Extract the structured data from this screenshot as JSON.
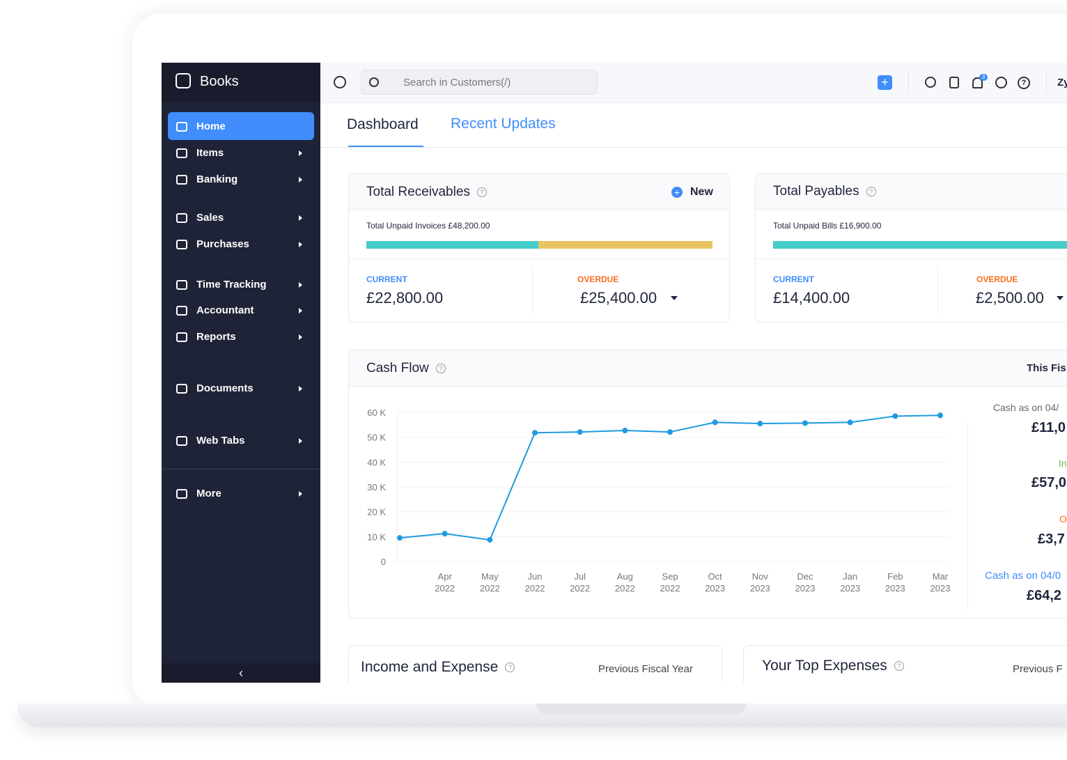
{
  "sidebar": {
    "brand": "Books",
    "nav": [
      "Home",
      "Items",
      "Banking",
      "Sales",
      "Purchases",
      "Time Tracking",
      "Accountant",
      "Reports",
      "Documents",
      "Web Tabs",
      "More"
    ]
  },
  "topbar": {
    "search_placeholder": "Search in Customers(/)",
    "notification_count": "3",
    "user": "Zy"
  },
  "tabs": [
    "Dashboard",
    "Recent Updates"
  ],
  "receivables": {
    "title": "Total Receivables",
    "action": "New",
    "summary": "Total Unpaid Invoices £48,200.00",
    "current_label": "CURRENT",
    "current": "£22,800.00",
    "overdue_label": "OVERDUE",
    "overdue": "£25,400.00"
  },
  "payables": {
    "title": "Total Payables",
    "summary": "Total Unpaid Bills £16,900.00",
    "current_label": "CURRENT",
    "current": "£14,400.00",
    "overdue_label": "OVERDUE",
    "overdue": "£2,500.00"
  },
  "chart_data": {
    "type": "line",
    "title": "Cash Flow",
    "period": "This Fis",
    "categories": [
      null,
      [
        "Apr",
        "2022"
      ],
      [
        "May",
        "2022"
      ],
      [
        "Jun",
        "2022"
      ],
      [
        "Jul",
        "2022"
      ],
      [
        "Aug",
        "2022"
      ],
      [
        "Sep",
        "2022"
      ],
      [
        "Oct",
        "2023"
      ],
      [
        "Nov",
        "2023"
      ],
      [
        "Dec",
        "2023"
      ],
      [
        "Jan",
        "2023"
      ],
      [
        "Feb",
        "2023"
      ],
      [
        "Mar",
        "2023"
      ]
    ],
    "values": [
      9500,
      11200,
      8700,
      51800,
      52100,
      52700,
      52100,
      56000,
      55500,
      55700,
      56000,
      58500,
      58800
    ],
    "color": "#1e9be0",
    "ylim": [
      0,
      60000
    ],
    "yticks": [
      0,
      {
        "value": 10000,
        "label": "10 K"
      },
      {
        "value": 20000,
        "label": "20 K"
      },
      {
        "value": 30000,
        "label": "30 K"
      },
      {
        "value": 40000,
        "label": "40 K"
      },
      {
        "value": 50000,
        "label": "50 K"
      },
      {
        "value": 60000,
        "label": "60 K"
      }
    ],
    "grid": true
  },
  "cash_summary": {
    "opening_label": "Cash as on 04/",
    "opening": "£11,0",
    "incoming_label": "In",
    "incoming": "£57,0",
    "outgoing_label": "O",
    "outgoing": "£3,7",
    "closing_label": "Cash as on 04/0",
    "closing": "£64,2"
  },
  "bottom_cards": [
    {
      "title": "Income and Expense",
      "period": "Previous Fiscal Year"
    },
    {
      "title": "Your Top Expenses",
      "period": "Previous F"
    }
  ]
}
